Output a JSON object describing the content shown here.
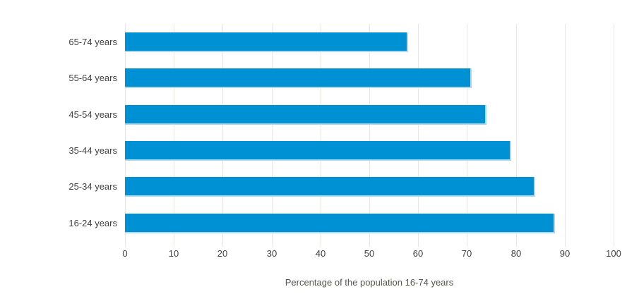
{
  "chart_data": {
    "type": "bar",
    "orientation": "horizontal",
    "title": "",
    "categories": [
      "65-74 years",
      "55-64 years",
      "45-54 years",
      "35-44 years",
      "25-34 years",
      "16-24 years"
    ],
    "values": [
      58,
      71,
      74,
      79,
      84,
      88
    ],
    "xlabel": "Percentage of the population 16-74 years",
    "ylabel": "",
    "xlim": [
      0,
      100
    ],
    "xticks": [
      0,
      10,
      20,
      30,
      40,
      50,
      60,
      70,
      80,
      90,
      100
    ],
    "grid": true,
    "legend": false
  },
  "colors": {
    "bar": "#0090d4",
    "bar_edge": "#a9daf2",
    "grid": "#e8e8e3",
    "tick_text": "#414141",
    "category_text": "#414141",
    "axis_title_text": "#55554d",
    "background": "#ffffff"
  }
}
